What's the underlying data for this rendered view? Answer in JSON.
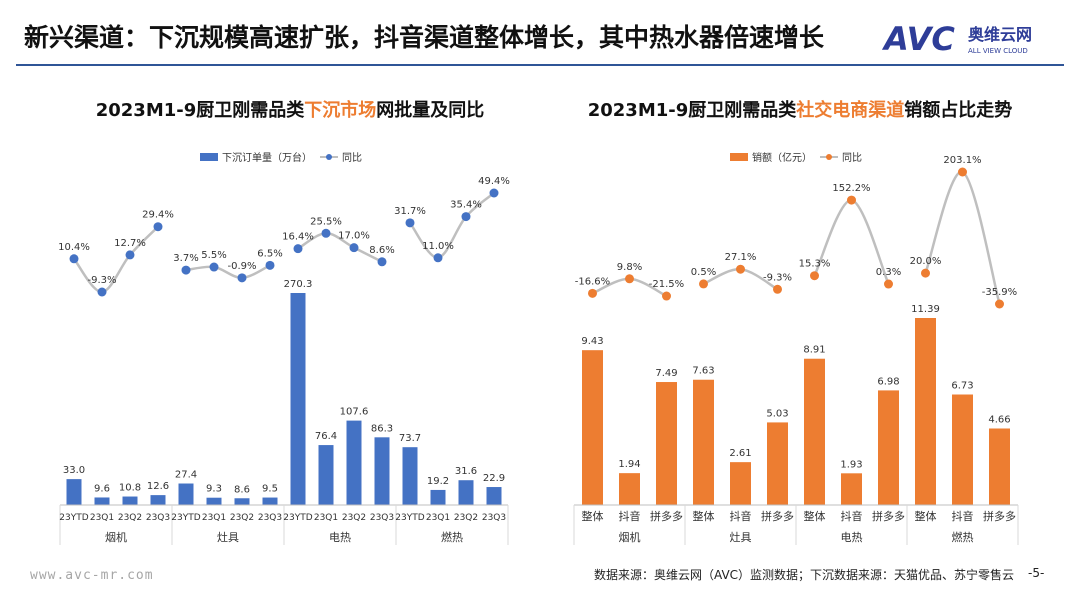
{
  "header": {
    "title": "新兴渠道：下沉规模高速扩张，抖音渠道整体增长，其中热水器倍速增长",
    "logo_text": "AVC",
    "logo_cn": "奥维云网",
    "logo_en": "ALL VIEW CLOUD"
  },
  "footer": {
    "url": "www.avc-mr.com",
    "source": "数据来源：奥维云网（AVC）监测数据；下沉数据来源：天猫优品、苏宁零售云",
    "page": "-5-"
  },
  "chart_data": [
    {
      "type": "bar",
      "title_pre": "2023M1-9厨卫刚需品类",
      "title_hl": "下沉市场",
      "title_post": "网批量及同比",
      "legend": [
        "下沉订单量（万台）",
        "同比"
      ],
      "categories": [
        "23YTD",
        "23Q1",
        "23Q2",
        "23Q3",
        "23YTD",
        "23Q1",
        "23Q2",
        "23Q3",
        "23YTD",
        "23Q1",
        "23Q2",
        "23Q3",
        "23YTD",
        "23Q1",
        "23Q2",
        "23Q3"
      ],
      "groups": [
        "烟机",
        "灶具",
        "电热",
        "燃热"
      ],
      "series": [
        {
          "name": "下沉订单量（万台）",
          "type": "bar",
          "values": [
            33.0,
            9.6,
            10.8,
            12.6,
            27.4,
            9.3,
            8.6,
            9.5,
            270.3,
            76.4,
            107.6,
            86.3,
            73.7,
            19.2,
            31.6,
            22.9
          ],
          "labels": [
            "33.0",
            "9.6",
            "10.8",
            "12.6",
            "27.4",
            "9.3",
            "8.6",
            "9.5",
            "270.3",
            "76.4",
            "107.6",
            "86.3",
            "73.7",
            "19.2",
            "31.6",
            "22.9"
          ]
        },
        {
          "name": "同比",
          "type": "line",
          "values": [
            10.4,
            -9.3,
            12.7,
            29.4,
            3.7,
            5.5,
            -0.9,
            6.5,
            16.4,
            25.5,
            17.0,
            8.6,
            31.7,
            11.0,
            35.4,
            49.4
          ],
          "labels": [
            "10.4%",
            "-9.3%",
            "12.7%",
            "29.4%",
            "3.7%",
            "5.5%",
            "-0.9%",
            "6.5%",
            "16.4%",
            "25.5%",
            "17.0%",
            "8.6%",
            "31.7%",
            "11.0%",
            "35.4%",
            "49.4%"
          ]
        }
      ],
      "colors": {
        "bar": "#4472c4",
        "line": "#bfbfbf",
        "point": "#4472c4"
      }
    },
    {
      "type": "bar",
      "title_pre": "2023M1-9厨卫刚需品类",
      "title_hl": "社交电商渠道",
      "title_post": "销额占比走势",
      "legend": [
        "销额（亿元）",
        "同比"
      ],
      "categories": [
        "整体",
        "抖音",
        "拼多多",
        "整体",
        "抖音",
        "拼多多",
        "整体",
        "抖音",
        "拼多多",
        "整体",
        "抖音",
        "拼多多"
      ],
      "groups": [
        "烟机",
        "灶具",
        "电热",
        "燃热"
      ],
      "series": [
        {
          "name": "销额（亿元）",
          "type": "bar",
          "values": [
            9.43,
            1.94,
            7.49,
            7.63,
            2.61,
            5.03,
            8.91,
            1.93,
            6.98,
            11.39,
            6.73,
            4.66
          ],
          "labels": [
            "9.43",
            "1.94",
            "7.49",
            "7.63",
            "2.61",
            "5.03",
            "8.91",
            "1.93",
            "6.98",
            "11.39",
            "6.73",
            "4.66"
          ]
        },
        {
          "name": "同比",
          "type": "line",
          "values": [
            -16.6,
            9.8,
            -21.5,
            0.5,
            27.1,
            -9.3,
            15.3,
            152.2,
            0.3,
            20.0,
            203.1,
            -35.9
          ],
          "labels": [
            "-16.6%",
            "9.8%",
            "-21.5%",
            "0.5%",
            "27.1%",
            "-9.3%",
            "15.3%",
            "152.2%",
            "0.3%",
            "20.0%",
            "203.1%",
            "-35.9%"
          ]
        }
      ],
      "colors": {
        "bar": "#ed7d31",
        "line": "#bfbfbf",
        "point": "#ed7d31"
      }
    }
  ]
}
